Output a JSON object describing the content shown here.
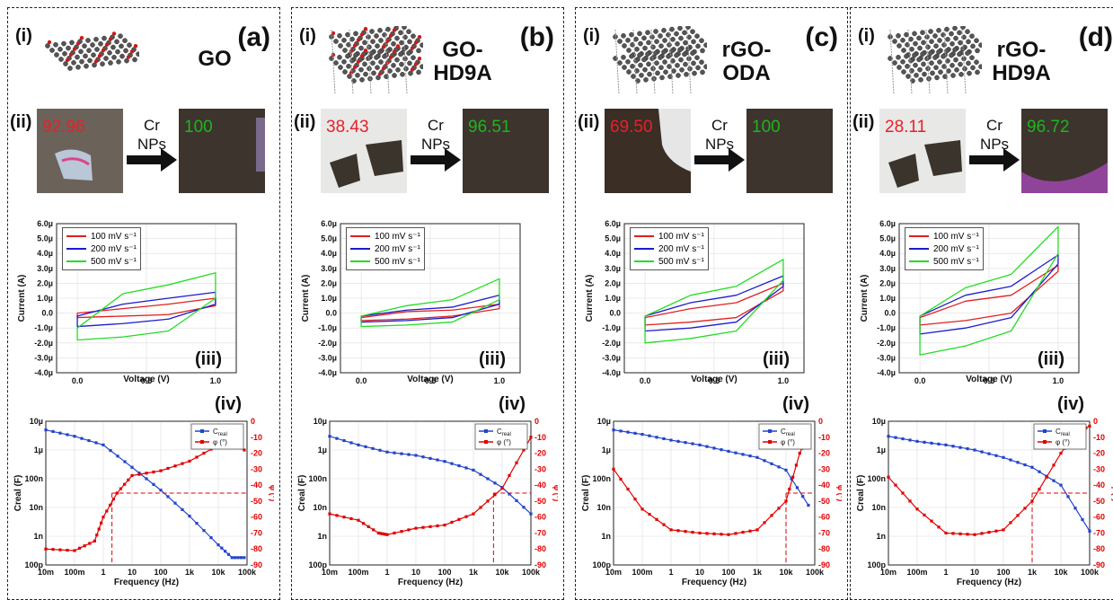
{
  "panels": [
    {
      "letter": "(a)",
      "title": "GO",
      "before": "92.96",
      "after": "100"
    },
    {
      "letter": "(b)",
      "title": "GO-\nHD9A",
      "before": "38.43",
      "after": "96.51"
    },
    {
      "letter": "(c)",
      "title": "rGO-\nODA",
      "before": "69.50",
      "after": "100"
    },
    {
      "letter": "(d)",
      "title": "rGO-\nHD9A",
      "before": "28.11",
      "after": "96.72"
    }
  ],
  "labels": {
    "i": "(i)",
    "ii": "(ii)",
    "iii": "(iii)",
    "iv": "(iv)",
    "arrow": "Cr\nNPs"
  },
  "colors": {
    "before": "#e8202a",
    "after": "#1fb51f",
    "s100": "#e02020",
    "s200": "#1b1bd0",
    "s500": "#22dd22",
    "creal": "#2244cc",
    "phi": "#e00000"
  },
  "chart_data": [
    {
      "type": "line",
      "panel": "cv",
      "xlabel": "Voltage (V)",
      "ylabel": "Current (A)",
      "xlim": [
        -0.15,
        1.15
      ],
      "ylim": [
        -4.0,
        6.0
      ],
      "xticks": [
        0.0,
        0.5,
        1.0
      ],
      "yticks": [
        "6.0µ",
        "5.0µ",
        "4.0µ",
        "3.0µ",
        "2.0µ",
        "1.0µ",
        "0.0",
        "-1.0µ",
        "-2.0µ",
        "-3.0µ",
        "-4.0µ"
      ],
      "series_names": [
        "100 mV s-1",
        "200 mV s-1",
        "500 mV s-1"
      ],
      "data": [
        {
          "panel": "a",
          "loops": [
            {
              "top": [
                0.0,
                0.3,
                0.6,
                1.0
              ],
              "bot": [
                -0.3,
                -0.2,
                -0.1,
                0.5
              ]
            },
            {
              "top": [
                -0.2,
                0.6,
                1.0,
                1.4
              ],
              "bot": [
                -0.9,
                -0.7,
                -0.4,
                0.6
              ]
            },
            {
              "top": [
                -1.0,
                1.3,
                1.9,
                2.7
              ],
              "bot": [
                -1.8,
                -1.6,
                -1.2,
                1.0
              ]
            }
          ]
        },
        {
          "panel": "b",
          "loops": [
            {
              "top": [
                -0.3,
                0.1,
                0.2,
                0.6
              ],
              "bot": [
                -0.5,
                -0.4,
                -0.2,
                0.3
              ]
            },
            {
              "top": [
                -0.2,
                0.2,
                0.4,
                1.2
              ],
              "bot": [
                -0.6,
                -0.5,
                -0.3,
                0.6
              ]
            },
            {
              "top": [
                -0.2,
                0.5,
                0.9,
                2.3
              ],
              "bot": [
                -0.9,
                -0.8,
                -0.6,
                0.9
              ]
            }
          ]
        },
        {
          "panel": "c",
          "loops": [
            {
              "top": [
                -0.3,
                0.3,
                0.7,
                2.0
              ],
              "bot": [
                -0.8,
                -0.6,
                -0.3,
                1.5
              ]
            },
            {
              "top": [
                -0.2,
                0.7,
                1.2,
                2.5
              ],
              "bot": [
                -1.2,
                -1.0,
                -0.6,
                1.8
              ]
            },
            {
              "top": [
                -0.2,
                1.2,
                1.8,
                3.6
              ],
              "bot": [
                -2.0,
                -1.7,
                -1.2,
                2.2
              ]
            }
          ]
        },
        {
          "panel": "d",
          "loops": [
            {
              "top": [
                -0.3,
                0.8,
                1.2,
                3.2
              ],
              "bot": [
                -0.8,
                -0.5,
                0.0,
                2.8
              ]
            },
            {
              "top": [
                -0.2,
                1.2,
                1.8,
                3.9
              ],
              "bot": [
                -1.4,
                -1.0,
                -0.3,
                3.3
              ]
            },
            {
              "top": [
                -0.2,
                1.7,
                2.6,
                5.8
              ],
              "bot": [
                -2.8,
                -2.2,
                -1.2,
                4.0
              ]
            }
          ]
        }
      ]
    },
    {
      "type": "line",
      "panel": "bode",
      "xlabel": "Frequency (Hz)",
      "ylabel": "Creal (F)",
      "y2label": "φ (°)",
      "xlim": [
        0.01,
        100000
      ],
      "ylim": [
        1e-10,
        1e-05
      ],
      "y2lim": [
        -90,
        0
      ],
      "xscale": "log",
      "yscale": "log",
      "xticks": [
        "10m",
        "100m",
        "1",
        "10",
        "100",
        "1k",
        "10k",
        "100k"
      ],
      "yticks": [
        "10µ",
        "1µ",
        "100n",
        "10n",
        "1n",
        "100p"
      ],
      "y2ticks": [
        "0",
        "-10",
        "-20",
        "-30",
        "-40",
        "-50",
        "-60",
        "-70",
        "-80",
        "-90"
      ],
      "legend": [
        "Creal",
        "φ (°)"
      ],
      "data": [
        {
          "panel": "a",
          "creal": [
            [
              0.01,
              5e-06
            ],
            [
              0.1,
              3e-06
            ],
            [
              1,
              1.5e-06
            ],
            [
              10,
              2.5e-07
            ],
            [
              100,
              4e-08
            ],
            [
              1000,
              5e-09
            ],
            [
              10000,
              5e-10
            ],
            [
              30000,
              1.8e-10
            ],
            [
              80000,
              1.8e-10
            ]
          ],
          "phi": [
            [
              0.01,
              -80
            ],
            [
              0.1,
              -81
            ],
            [
              0.5,
              -75
            ],
            [
              1,
              -60
            ],
            [
              3,
              -45
            ],
            [
              10,
              -34
            ],
            [
              100,
              -31
            ],
            [
              1000,
              -25
            ],
            [
              10000,
              -15
            ],
            [
              30000,
              -13
            ],
            [
              80000,
              -18
            ]
          ],
          "cross": 2
        },
        {
          "panel": "b",
          "creal": [
            [
              0.01,
              3e-06
            ],
            [
              0.1,
              1.5e-06
            ],
            [
              1,
              8.5e-07
            ],
            [
              10,
              6.5e-07
            ],
            [
              100,
              4e-07
            ],
            [
              1000,
              2e-07
            ],
            [
              10000,
              5e-08
            ],
            [
              100000,
              6e-09
            ]
          ],
          "phi": [
            [
              0.01,
              -58
            ],
            [
              0.1,
              -62
            ],
            [
              0.5,
              -70
            ],
            [
              1,
              -71
            ],
            [
              10,
              -67
            ],
            [
              100,
              -65
            ],
            [
              1000,
              -58
            ],
            [
              10000,
              -42
            ],
            [
              100000,
              -10
            ]
          ],
          "cross": 5000
        },
        {
          "panel": "c",
          "creal": [
            [
              0.01,
              5e-06
            ],
            [
              0.1,
              3.5e-06
            ],
            [
              1,
              2.2e-06
            ],
            [
              10,
              1.5e-06
            ],
            [
              100,
              9e-07
            ],
            [
              1000,
              5.5e-07
            ],
            [
              10000,
              2e-07
            ],
            [
              60000,
              1.2e-08
            ]
          ],
          "phi": [
            [
              0.01,
              -30
            ],
            [
              0.1,
              -55
            ],
            [
              1,
              -68
            ],
            [
              10,
              -70
            ],
            [
              100,
              -71
            ],
            [
              1000,
              -68
            ],
            [
              10000,
              -50
            ],
            [
              30000,
              -20
            ],
            [
              60000,
              -8
            ]
          ],
          "cross": 10000
        },
        {
          "panel": "d",
          "creal": [
            [
              0.01,
              3e-06
            ],
            [
              0.1,
              2e-06
            ],
            [
              1,
              1.5e-06
            ],
            [
              10,
              1e-06
            ],
            [
              100,
              5.5e-07
            ],
            [
              1000,
              2.5e-07
            ],
            [
              10000,
              6e-08
            ],
            [
              100000,
              1.5e-09
            ]
          ],
          "phi": [
            [
              0.01,
              -35
            ],
            [
              0.1,
              -55
            ],
            [
              1,
              -70
            ],
            [
              10,
              -71
            ],
            [
              100,
              -68
            ],
            [
              1000,
              -50
            ],
            [
              10000,
              -20
            ],
            [
              30000,
              -8
            ],
            [
              100000,
              -3
            ]
          ],
          "cross": 1000
        }
      ]
    }
  ]
}
